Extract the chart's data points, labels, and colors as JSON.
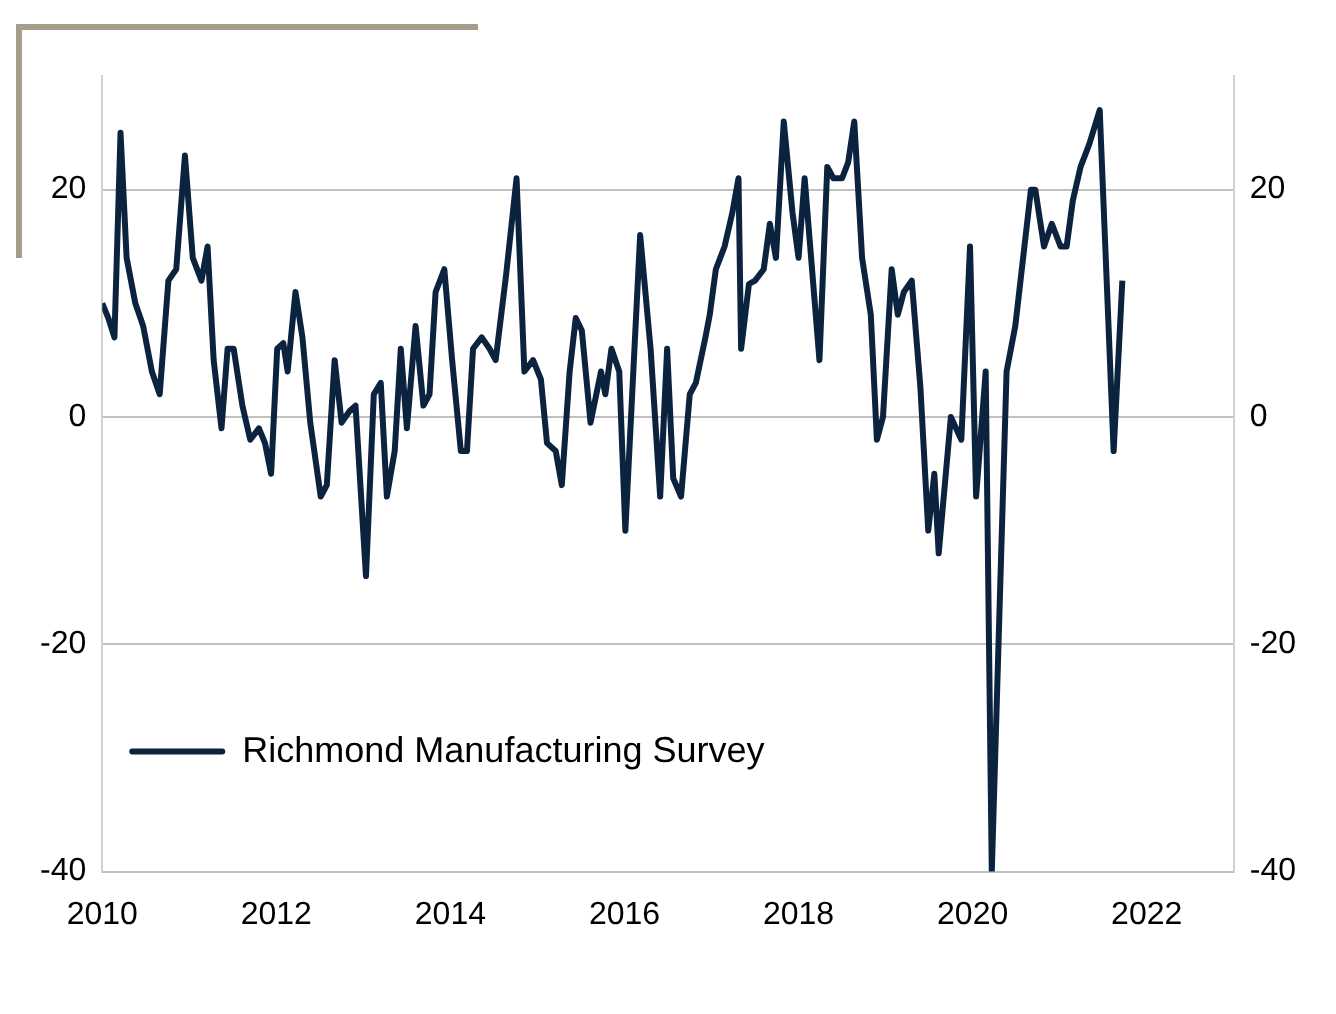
{
  "chart_data": {
    "type": "line",
    "x": [
      2010,
      2010.07,
      2010.14,
      2010.21,
      2010.28,
      2010.38,
      2010.47,
      2010.57,
      2010.66,
      2010.76,
      2010.85,
      2010.95,
      2011.04,
      2011.14,
      2011.21,
      2011.28,
      2011.37,
      2011.44,
      2011.51,
      2011.61,
      2011.7,
      2011.8,
      2011.87,
      2011.94,
      2012.01,
      2012.08,
      2012.13,
      2012.22,
      2012.3,
      2012.39,
      2012.51,
      2012.58,
      2012.67,
      2012.75,
      2012.84,
      2012.91,
      2013.03,
      2013.12,
      2013.2,
      2013.27,
      2013.36,
      2013.43,
      2013.5,
      2013.6,
      2013.69,
      2013.76,
      2013.83,
      2013.93,
      2014.02,
      2014.12,
      2014.19,
      2014.26,
      2014.36,
      2014.45,
      2014.52,
      2014.64,
      2014.76,
      2014.85,
      2014.95,
      2015.04,
      2015.11,
      2015.21,
      2015.28,
      2015.37,
      2015.44,
      2015.51,
      2015.61,
      2015.73,
      2015.78,
      2015.85,
      2015.94,
      2016.01,
      2016.18,
      2016.3,
      2016.41,
      2016.49,
      2016.56,
      2016.65,
      2016.75,
      2016.82,
      2016.93,
      2016.98,
      2017.05,
      2017.15,
      2017.24,
      2017.31,
      2017.34,
      2017.43,
      2017.5,
      2017.6,
      2017.67,
      2017.74,
      2017.83,
      2017.93,
      2018,
      2018.07,
      2018.24,
      2018.33,
      2018.4,
      2018.5,
      2018.57,
      2018.64,
      2018.73,
      2018.83,
      2018.9,
      2018.97,
      2019.07,
      2019.14,
      2019.21,
      2019.3,
      2019.4,
      2019.49,
      2019.56,
      2019.61,
      2019.75,
      2019.87,
      2019.97,
      2020.04,
      2020.15,
      2020.22,
      2020.39,
      2020.49,
      2020.58,
      2020.67,
      2020.72,
      2020.82,
      2020.91,
      2021.01,
      2021.08,
      2021.15,
      2021.24,
      2021.34,
      2021.46,
      2021.62,
      2021.72
    ],
    "series": [
      {
        "name": "Richmond Manufacturing Survey",
        "color": "#0c2340",
        "values": [
          10,
          8.7,
          7,
          25,
          14,
          10,
          8,
          4,
          2,
          12,
          13,
          23,
          14,
          12,
          15,
          5,
          -1,
          6,
          6,
          1,
          -2,
          -1,
          -2.3,
          -5,
          6,
          6.5,
          4,
          11,
          7,
          -0.5,
          -7,
          -6,
          5,
          -0.5,
          0.5,
          1,
          -14,
          2,
          3,
          -7,
          -3,
          6,
          -1,
          8,
          1,
          2,
          11,
          13,
          5,
          -3,
          -3,
          6,
          7,
          6,
          5,
          12.5,
          21,
          4,
          5,
          3.3,
          -2.3,
          -3,
          -6,
          4,
          8.7,
          7.6,
          -0.5,
          4,
          2,
          6,
          4,
          -10,
          16,
          6,
          -7,
          6,
          -5.4,
          -7,
          2,
          3,
          7,
          9,
          13,
          15,
          18,
          21,
          6,
          11.7,
          12,
          13,
          17,
          14,
          26,
          18,
          14,
          21,
          5,
          22,
          21,
          21,
          22.4,
          26,
          14,
          9,
          -2,
          0,
          13,
          9,
          11,
          12,
          2.6,
          -10,
          -5,
          -12,
          0,
          -2,
          15,
          -7,
          4,
          -40,
          4,
          8,
          14,
          20,
          20,
          15,
          17,
          15,
          15,
          19,
          22,
          24,
          27,
          -3,
          12
        ]
      }
    ],
    "xlim": [
      2010,
      2023
    ],
    "xticks": [
      2010,
      2012,
      2014,
      2016,
      2018,
      2020,
      2022
    ],
    "ylim": [
      -40,
      30
    ],
    "yticks": [
      -40,
      -20,
      0,
      20
    ],
    "y2lim": [
      -40,
      30
    ],
    "y2ticks": [
      -40,
      -20,
      0,
      20
    ],
    "grid": "y",
    "legend": "bottom left",
    "line_style": "solid",
    "marker": "none"
  }
}
